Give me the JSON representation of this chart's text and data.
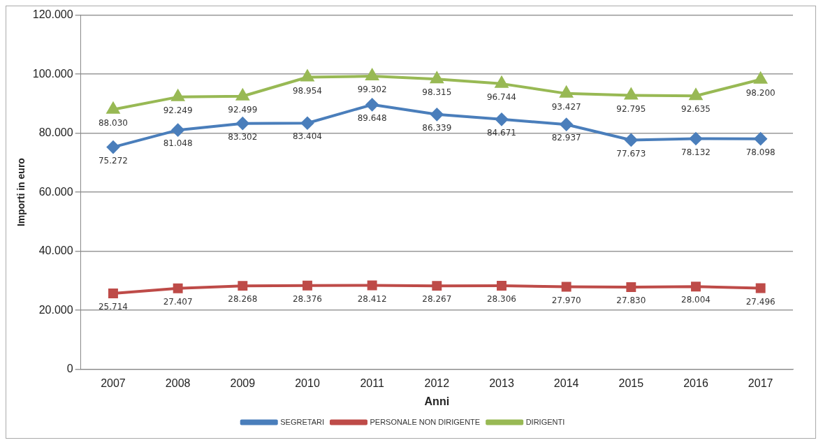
{
  "chart_data": {
    "type": "line",
    "xlabel": "Anni",
    "ylabel": "Importi in euro",
    "categories": [
      "2007",
      "2008",
      "2009",
      "2010",
      "2011",
      "2012",
      "2013",
      "2014",
      "2015",
      "2016",
      "2017"
    ],
    "ylim": [
      0,
      120000
    ],
    "yticks": [
      0,
      {
        "value": 20000,
        "label": "20.000"
      },
      {
        "value": 40000,
        "label": "40.000"
      },
      {
        "value": 60000,
        "label": "60.000"
      },
      {
        "value": 80000,
        "label": "80.000"
      },
      {
        "value": 100000,
        "label": "100.000"
      },
      {
        "value": 120000,
        "label": "120.000"
      }
    ],
    "grid": "y",
    "legend": "bottom",
    "series": [
      {
        "name": "SEGRETARI",
        "color": "#4a7ebb",
        "marker": "diamond",
        "values": [
          75272,
          81048,
          83302,
          83404,
          89648,
          86339,
          84671,
          82937,
          77673,
          78132,
          78098
        ],
        "value_labels": [
          "75.272",
          "81.048",
          "83.302",
          "83.404",
          "89.648",
          "86.339",
          "84.671",
          "82.937",
          "77.673",
          "78.132",
          "78.098"
        ]
      },
      {
        "name": "PERSONALE NON DIRIGENTE",
        "color": "#be4b48",
        "marker": "square",
        "values": [
          25714,
          27407,
          28268,
          28376,
          28412,
          28267,
          28306,
          27970,
          27830,
          28004,
          27496
        ],
        "value_labels": [
          "25.714",
          "27.407",
          "28.268",
          "28.376",
          "28.412",
          "28.267",
          "28.306",
          "27.970",
          "27.830",
          "28.004",
          "27.496"
        ]
      },
      {
        "name": "DIRIGENTI",
        "color": "#98b954",
        "marker": "triangle",
        "values": [
          88030,
          92249,
          92499,
          98954,
          99302,
          98315,
          96744,
          93427,
          92795,
          92635,
          98200
        ],
        "value_labels": [
          "88.030",
          "92.249",
          "92.499",
          "98.954",
          "99.302",
          "98.315",
          "96.744",
          "93.427",
          "92.795",
          "92.635",
          "98.200"
        ]
      }
    ]
  }
}
